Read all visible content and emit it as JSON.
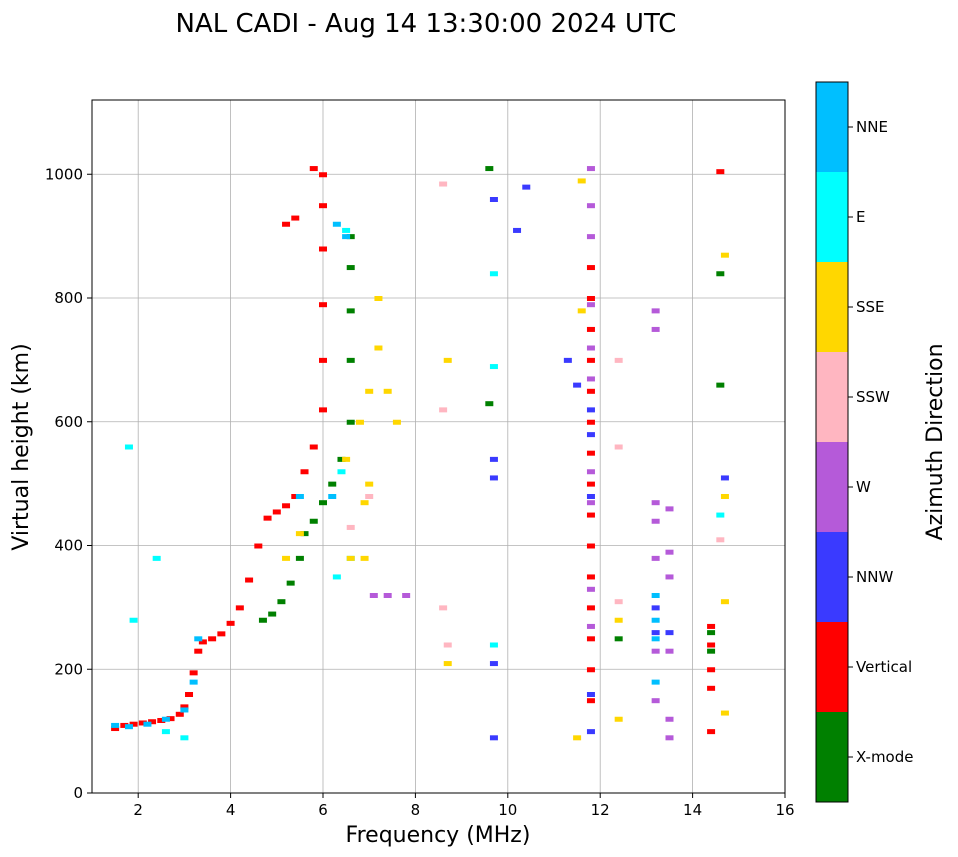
{
  "chart_data": {
    "type": "scatter",
    "title": "NAL CADI - Aug 14 13:30:00 2024 UTC",
    "xlabel": "Frequency (MHz)",
    "ylabel": "Virtual height (km)",
    "xlim": [
      1,
      16
    ],
    "ylim": [
      0,
      1120
    ],
    "xticks": [
      2,
      4,
      6,
      8,
      10,
      12,
      14,
      16
    ],
    "yticks": [
      0,
      200,
      400,
      600,
      800,
      1000
    ],
    "grid": true,
    "colorbar": {
      "label": "Azimuth Direction",
      "categories": [
        "X-mode",
        "Vertical",
        "NNW",
        "W",
        "SSW",
        "SSE",
        "E",
        "NNE"
      ],
      "colors": {
        "X-mode": "#008000",
        "Vertical": "#ff0000",
        "NNW": "#3a3aff",
        "W": "#b55ad9",
        "SSW": "#ffb6c1",
        "SSE": "#ffd700",
        "E": "#00ffff",
        "NNE": "#00bfff"
      }
    },
    "traces": [
      {
        "category": "Vertical",
        "points": [
          [
            1.5,
            105
          ],
          [
            1.7,
            110
          ],
          [
            1.9,
            112
          ],
          [
            2.1,
            114
          ],
          [
            2.3,
            116
          ],
          [
            2.5,
            118
          ],
          [
            2.7,
            121
          ],
          [
            2.9,
            128
          ],
          [
            3.0,
            140
          ],
          [
            3.1,
            160
          ],
          [
            3.2,
            195
          ],
          [
            3.3,
            230
          ],
          [
            3.4,
            245
          ],
          [
            3.6,
            250
          ],
          [
            3.8,
            258
          ],
          [
            4.0,
            275
          ],
          [
            4.2,
            300
          ],
          [
            4.4,
            345
          ],
          [
            4.6,
            400
          ],
          [
            4.8,
            445
          ],
          [
            5.0,
            455
          ],
          [
            5.2,
            465
          ],
          [
            5.4,
            480
          ],
          [
            5.6,
            520
          ],
          [
            5.8,
            560
          ],
          [
            6.0,
            620
          ],
          [
            6.0,
            700
          ],
          [
            6.0,
            790
          ],
          [
            6.0,
            880
          ],
          [
            6.0,
            950
          ],
          [
            6.0,
            1000
          ],
          [
            5.8,
            1010
          ],
          [
            5.4,
            930
          ],
          [
            5.2,
            920
          ],
          [
            11.8,
            150
          ],
          [
            11.8,
            200
          ],
          [
            11.8,
            250
          ],
          [
            11.8,
            300
          ],
          [
            11.8,
            350
          ],
          [
            11.8,
            400
          ],
          [
            11.8,
            450
          ],
          [
            11.8,
            500
          ],
          [
            11.8,
            550
          ],
          [
            11.8,
            600
          ],
          [
            11.8,
            650
          ],
          [
            11.8,
            700
          ],
          [
            11.8,
            750
          ],
          [
            11.8,
            800
          ],
          [
            11.8,
            850
          ],
          [
            14.4,
            270
          ],
          [
            14.4,
            240
          ],
          [
            14.4,
            200
          ],
          [
            14.4,
            170
          ],
          [
            14.4,
            100
          ],
          [
            14.6,
            1005
          ]
        ]
      },
      {
        "category": "X-mode",
        "points": [
          [
            4.7,
            280
          ],
          [
            4.9,
            290
          ],
          [
            5.1,
            310
          ],
          [
            5.3,
            340
          ],
          [
            5.5,
            380
          ],
          [
            5.6,
            420
          ],
          [
            5.8,
            440
          ],
          [
            6.0,
            470
          ],
          [
            6.2,
            500
          ],
          [
            6.4,
            540
          ],
          [
            6.6,
            600
          ],
          [
            6.6,
            700
          ],
          [
            6.6,
            780
          ],
          [
            6.6,
            850
          ],
          [
            6.6,
            900
          ],
          [
            9.6,
            1010
          ],
          [
            9.6,
            630
          ],
          [
            12.4,
            250
          ],
          [
            14.4,
            260
          ],
          [
            14.4,
            230
          ],
          [
            14.6,
            660
          ],
          [
            14.6,
            840
          ]
        ]
      },
      {
        "category": "NNE",
        "points": [
          [
            1.5,
            110
          ],
          [
            1.8,
            108
          ],
          [
            2.2,
            112
          ],
          [
            2.6,
            120
          ],
          [
            3.0,
            135
          ],
          [
            3.2,
            180
          ],
          [
            3.3,
            250
          ],
          [
            5.5,
            480
          ],
          [
            6.2,
            480
          ],
          [
            6.5,
            900
          ],
          [
            6.3,
            920
          ],
          [
            13.2,
            320
          ],
          [
            13.2,
            280
          ],
          [
            13.2,
            250
          ],
          [
            13.2,
            180
          ]
        ]
      },
      {
        "category": "E",
        "points": [
          [
            1.8,
            560
          ],
          [
            1.9,
            280
          ],
          [
            2.4,
            380
          ],
          [
            2.6,
            100
          ],
          [
            3.0,
            90
          ],
          [
            6.5,
            910
          ],
          [
            6.4,
            520
          ],
          [
            6.3,
            350
          ],
          [
            6.6,
            380
          ],
          [
            9.7,
            840
          ],
          [
            9.7,
            690
          ],
          [
            9.7,
            240
          ],
          [
            14.6,
            450
          ]
        ]
      },
      {
        "category": "SSE",
        "points": [
          [
            6.5,
            540
          ],
          [
            6.8,
            600
          ],
          [
            7.0,
            650
          ],
          [
            7.2,
            720
          ],
          [
            7.4,
            650
          ],
          [
            7.6,
            600
          ],
          [
            7.2,
            800
          ],
          [
            7.0,
            500
          ],
          [
            6.9,
            470
          ],
          [
            6.6,
            380
          ],
          [
            6.9,
            380
          ],
          [
            5.2,
            380
          ],
          [
            5.5,
            420
          ],
          [
            8.7,
            210
          ],
          [
            8.7,
            700
          ],
          [
            11.5,
            90
          ],
          [
            11.6,
            780
          ],
          [
            11.6,
            990
          ],
          [
            12.4,
            280
          ],
          [
            12.4,
            120
          ],
          [
            14.7,
            310
          ],
          [
            14.7,
            480
          ],
          [
            14.7,
            870
          ],
          [
            14.7,
            130
          ]
        ]
      },
      {
        "category": "SSW",
        "points": [
          [
            8.6,
            620
          ],
          [
            8.6,
            985
          ],
          [
            8.6,
            300
          ],
          [
            8.7,
            240
          ],
          [
            7.0,
            480
          ],
          [
            6.6,
            430
          ],
          [
            12.4,
            700
          ],
          [
            12.4,
            560
          ],
          [
            12.4,
            310
          ],
          [
            14.6,
            410
          ]
        ]
      },
      {
        "category": "W",
        "points": [
          [
            11.8,
            1010
          ],
          [
            11.8,
            950
          ],
          [
            11.8,
            900
          ],
          [
            11.8,
            790
          ],
          [
            11.8,
            720
          ],
          [
            11.8,
            670
          ],
          [
            11.8,
            520
          ],
          [
            11.8,
            470
          ],
          [
            11.8,
            330
          ],
          [
            11.8,
            270
          ],
          [
            13.2,
            470
          ],
          [
            13.2,
            440
          ],
          [
            13.2,
            380
          ],
          [
            13.2,
            230
          ],
          [
            13.2,
            150
          ],
          [
            13.5,
            460
          ],
          [
            13.5,
            390
          ],
          [
            13.5,
            350
          ],
          [
            13.5,
            230
          ],
          [
            13.5,
            120
          ],
          [
            13.5,
            90
          ],
          [
            13.2,
            780
          ],
          [
            13.2,
            750
          ],
          [
            7.1,
            320
          ],
          [
            7.4,
            320
          ],
          [
            7.8,
            320
          ]
        ]
      },
      {
        "category": "NNW",
        "points": [
          [
            10.4,
            980
          ],
          [
            10.2,
            910
          ],
          [
            9.7,
            960
          ],
          [
            9.7,
            540
          ],
          [
            9.7,
            510
          ],
          [
            9.7,
            210
          ],
          [
            9.7,
            90
          ],
          [
            11.8,
            620
          ],
          [
            11.8,
            580
          ],
          [
            11.8,
            480
          ],
          [
            11.8,
            160
          ],
          [
            11.8,
            100
          ],
          [
            13.2,
            300
          ],
          [
            13.2,
            260
          ],
          [
            13.5,
            260
          ],
          [
            14.7,
            510
          ],
          [
            11.5,
            660
          ],
          [
            11.3,
            700
          ]
        ]
      }
    ]
  }
}
